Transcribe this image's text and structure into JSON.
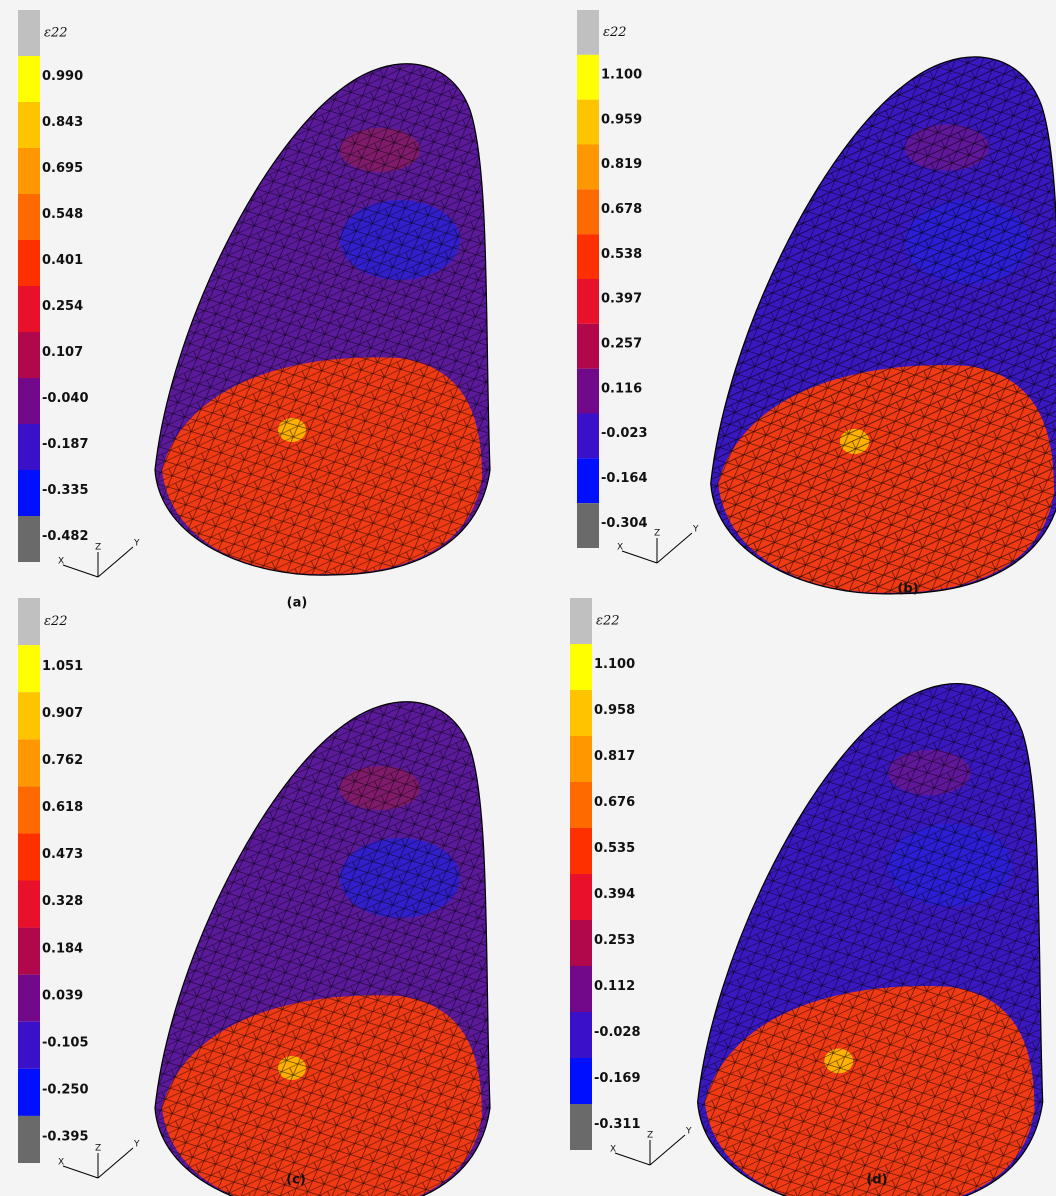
{
  "panels": [
    {
      "legend_title": "ε22",
      "legend_labels": [
        "0.990",
        "0.843",
        "0.695",
        "0.548",
        "0.401",
        "0.254",
        "0.107",
        "-0.040",
        "-0.187",
        "-0.335",
        "-0.482"
      ],
      "caption": "(a)",
      "triad": {
        "x": "X",
        "y": "Y",
        "z": "Z"
      }
    },
    {
      "legend_title": "ε22",
      "legend_labels": [
        "1.100",
        "0.959",
        "0.819",
        "0.678",
        "0.538",
        "0.397",
        "0.257",
        "0.116",
        "-0.023",
        "-0.164",
        "-0.304"
      ],
      "caption": "(b)",
      "triad": {
        "x": "X",
        "y": "Y",
        "z": "Z"
      }
    },
    {
      "legend_title": "ε22",
      "legend_labels": [
        "1.051",
        "0.907",
        "0.762",
        "0.618",
        "0.473",
        "0.328",
        "0.184",
        "0.039",
        "-0.105",
        "-0.250",
        "-0.395"
      ],
      "caption": "(c)",
      "triad": {
        "x": "X",
        "y": "Y",
        "z": "Z"
      }
    },
    {
      "legend_title": "ε22",
      "legend_labels": [
        "1.100",
        "0.958",
        "0.817",
        "0.676",
        "0.535",
        "0.394",
        "0.253",
        "0.112",
        "-0.028",
        "-0.169",
        "-0.311"
      ],
      "caption": "(d)",
      "triad": {
        "x": "X",
        "y": "Y",
        "z": "Z"
      }
    }
  ]
}
